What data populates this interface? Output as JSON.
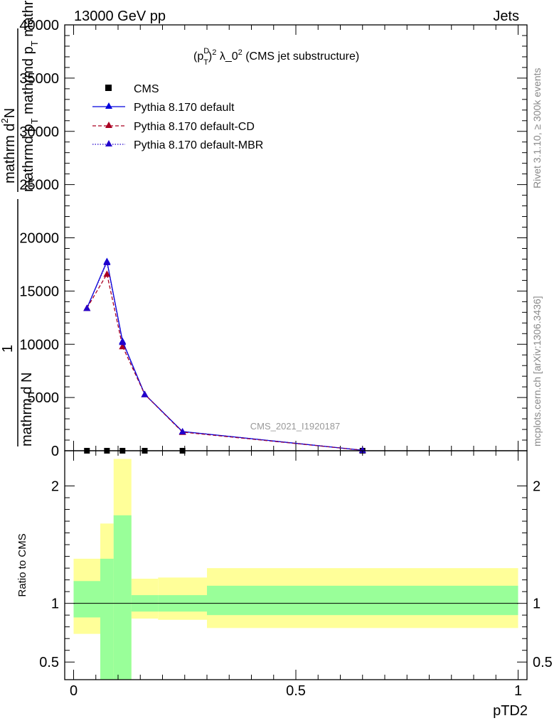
{
  "header": {
    "energy_label": "13000 GeV pp",
    "process_label": "Jets"
  },
  "chart_data": [
    {
      "type": "line",
      "panel": "main",
      "title_parts": {
        "base": "(p",
        "sup_d": "D",
        "sub_t": "T",
        "sup_2": "2",
        "rest": " λ_0",
        "sup_2b": "2",
        "suffix": " (CMS jet substructure)"
      },
      "ylabel": {
        "line1": "mathrm d",
        "sup_n": "2",
        "line1_end": "N",
        "line2": "mathrmd p",
        "line2_sub": "T",
        "line2_end": " mathrmd p",
        "line2_sub2": "T",
        "line2_tail": " mathrm d lambda",
        "one": "1",
        "den": "mathrm d N"
      },
      "ylim": [
        0,
        40000
      ],
      "xlim": [
        -0.02,
        1.02
      ],
      "y_ticks": [
        0,
        5000,
        10000,
        15000,
        20000,
        25000,
        30000,
        35000,
        40000
      ],
      "y_tick_labels": [
        "0",
        "5000",
        "10000",
        "15000",
        "20000",
        "25000",
        "30000",
        "35000",
        "40000"
      ],
      "legend_position": "top-left",
      "series": [
        {
          "name": "CMS",
          "style": "marker-square",
          "color": "#000000",
          "x": [
            0.03,
            0.075,
            0.11,
            0.16,
            0.245,
            0.65
          ],
          "y": [
            0,
            0,
            0,
            0,
            0,
            0
          ]
        },
        {
          "name": "Pythia 8.170 default",
          "style": "solid",
          "color": "#0000dd",
          "x": [
            0.03,
            0.075,
            0.11,
            0.16,
            0.245,
            0.65
          ],
          "y": [
            13400,
            17800,
            10300,
            5300,
            1800,
            50
          ]
        },
        {
          "name": "Pythia 8.170 default-CD",
          "style": "dashed",
          "color": "#aa0022",
          "x": [
            0.03,
            0.075,
            0.11,
            0.16,
            0.245,
            0.65
          ],
          "y": [
            13400,
            16600,
            9800,
            5300,
            1750,
            50
          ]
        },
        {
          "name": "Pythia 8.170 default-MBR",
          "style": "dotted",
          "color": "#2200cc",
          "x": [
            0.03,
            0.075,
            0.11,
            0.16,
            0.245,
            0.65
          ],
          "y": [
            13400,
            17700,
            10200,
            5300,
            1800,
            50
          ]
        }
      ],
      "watermark": "CMS_2021_I1920187"
    },
    {
      "type": "area",
      "panel": "ratio",
      "ylabel": "Ratio to CMS",
      "xlabel": "pTD2",
      "ylim": [
        0.35,
        2.3
      ],
      "xlim": [
        -0.02,
        1.02
      ],
      "x_ticks": [
        0,
        0.5,
        1
      ],
      "x_tick_labels": [
        "0",
        "0.5",
        "1"
      ],
      "y_ticks": [
        0.5,
        1,
        2
      ],
      "y_tick_labels": [
        "0.5",
        "1",
        "2"
      ],
      "bins": [
        {
          "x0": 0.0,
          "x1": 0.06,
          "stat_lo": 0.88,
          "stat_hi": 1.19,
          "tot_lo": 0.74,
          "tot_hi": 1.38
        },
        {
          "x0": 0.06,
          "x1": 0.09,
          "stat_lo": 0.35,
          "stat_hi": 1.38,
          "tot_lo": 0.35,
          "tot_hi": 1.68
        },
        {
          "x0": 0.09,
          "x1": 0.13,
          "stat_lo": 0.35,
          "stat_hi": 1.75,
          "tot_lo": 0.35,
          "tot_hi": 2.23
        },
        {
          "x0": 0.13,
          "x1": 0.19,
          "stat_lo": 0.93,
          "stat_hi": 1.07,
          "tot_lo": 0.87,
          "tot_hi": 1.21
        },
        {
          "x0": 0.19,
          "x1": 0.3,
          "stat_lo": 0.93,
          "stat_hi": 1.07,
          "tot_lo": 0.86,
          "tot_hi": 1.22
        },
        {
          "x0": 0.3,
          "x1": 1.0,
          "stat_lo": 0.9,
          "stat_hi": 1.15,
          "tot_lo": 0.79,
          "tot_hi": 1.3
        }
      ],
      "colors": {
        "stat": "#99ff99",
        "total": "#ffff99",
        "line": "#000000"
      }
    }
  ],
  "side_labels": {
    "rivet": "Rivet 3.1.10, ≥ 300k events",
    "mcplots": "mcplots.cern.ch [arXiv:1306.3436]"
  }
}
